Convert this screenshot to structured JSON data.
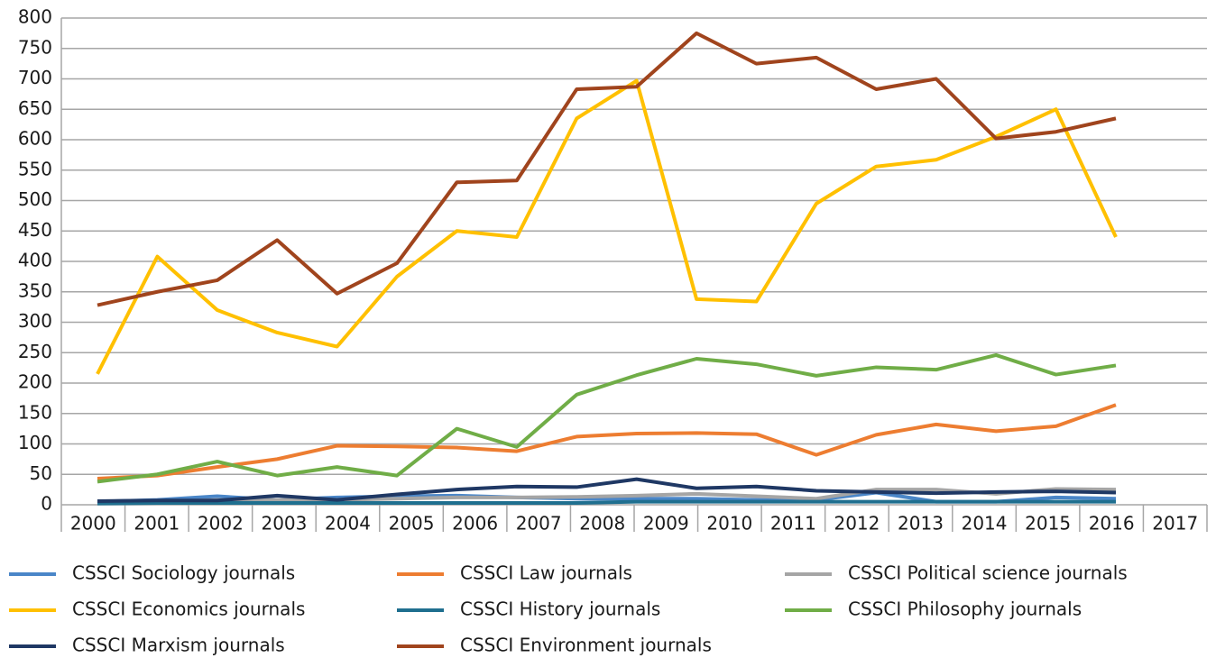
{
  "chart_data": {
    "type": "line",
    "categories": [
      "2000",
      "2001",
      "2002",
      "2003",
      "2004",
      "2005",
      "2006",
      "2007",
      "2008",
      "2009",
      "2010",
      "2011",
      "2012",
      "2013",
      "2014",
      "2015",
      "2016",
      "2017"
    ],
    "ylim": [
      0,
      800
    ],
    "yticks": [
      0,
      50,
      100,
      150,
      200,
      250,
      300,
      350,
      400,
      450,
      500,
      550,
      600,
      650,
      700,
      750,
      800
    ],
    "grid": true,
    "series": [
      {
        "name": "CSSCI Sociology journals",
        "color": "#4a86c8",
        "values": [
          5,
          8,
          14,
          8,
          12,
          14,
          15,
          12,
          10,
          10,
          10,
          8,
          8,
          20,
          5,
          5,
          12,
          10
        ]
      },
      {
        "name": "CSSCI Law journals",
        "color": "#ed7d31",
        "values": [
          43,
          48,
          62,
          75,
          97,
          96,
          94,
          88,
          112,
          117,
          118,
          116,
          82,
          115,
          132,
          121,
          129,
          164
        ]
      },
      {
        "name": "CSSCI Political science journals",
        "color": "#a5a5a5",
        "values": [
          3,
          5,
          8,
          8,
          8,
          10,
          12,
          12,
          13,
          15,
          18,
          14,
          10,
          25,
          25,
          18,
          26,
          25
        ]
      },
      {
        "name": "CSSCI Economics journals",
        "color": "#ffc000",
        "values": [
          215,
          408,
          320,
          283,
          260,
          375,
          450,
          440,
          635,
          697,
          338,
          334,
          495,
          556,
          567,
          605,
          650,
          440
        ]
      },
      {
        "name": "CSSCI History journals",
        "color": "#1f6f8f",
        "values": [
          2,
          3,
          3,
          3,
          3,
          3,
          3,
          3,
          3,
          5,
          5,
          5,
          5,
          5,
          5,
          5,
          5,
          5
        ]
      },
      {
        "name": "CSSCI Philosophy journals",
        "color": "#70ad47",
        "values": [
          38,
          50,
          71,
          48,
          62,
          48,
          125,
          95,
          181,
          213,
          240,
          231,
          212,
          226,
          222,
          246,
          214,
          229
        ]
      },
      {
        "name": "CSSCI Marxism journals",
        "color": "#1f3864",
        "values": [
          6,
          7,
          7,
          15,
          8,
          17,
          25,
          30,
          29,
          42,
          27,
          30,
          23,
          21,
          19,
          21,
          22,
          20
        ]
      },
      {
        "name": "CSSCI Environment journals",
        "color": "#a0441d",
        "values": [
          328,
          350,
          369,
          435,
          347,
          397,
          530,
          533,
          683,
          687,
          775,
          725,
          735,
          683,
          700,
          602,
          613,
          635
        ]
      }
    ]
  }
}
